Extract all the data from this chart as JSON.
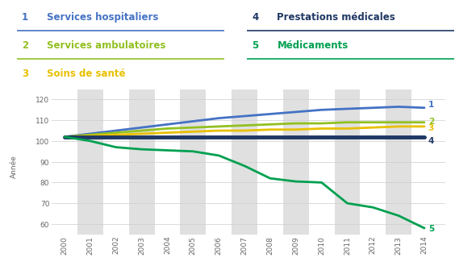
{
  "years": [
    2000,
    2001,
    2002,
    2003,
    2004,
    2005,
    2006,
    2007,
    2008,
    2009,
    2010,
    2011,
    2012,
    2013,
    2014
  ],
  "series": {
    "1": [
      102,
      103.5,
      105,
      106.5,
      108,
      109.5,
      111,
      112,
      113,
      114,
      115,
      115.5,
      116,
      116.5,
      116
    ],
    "2": [
      102,
      103,
      104,
      105,
      106,
      106.5,
      107,
      107.5,
      108,
      108.5,
      108.5,
      109,
      109,
      109,
      109
    ],
    "3": [
      102,
      102.5,
      103,
      103.5,
      104,
      104.5,
      105,
      105,
      105.5,
      105.5,
      106,
      106,
      106.5,
      107,
      107
    ],
    "4": [
      102,
      102,
      102,
      102,
      102,
      102,
      102,
      102,
      102,
      102,
      102,
      102,
      102,
      102,
      102
    ],
    "5": [
      102,
      100,
      97,
      96,
      95.5,
      95,
      93,
      88,
      82,
      80.5,
      80,
      70,
      68,
      64,
      58
    ]
  },
  "colors": {
    "1": "#4472C4",
    "2": "#92C020",
    "3": "#E8C000",
    "4": "#1F3864",
    "5": "#00A050"
  },
  "labels": {
    "1": "Services hospitaliers",
    "2": "Services ambulatoires",
    "3": "Soins de santé",
    "4": "Prestations médicales",
    "5": "Médicaments"
  },
  "label_colors": {
    "1": "#4472C4",
    "2": "#92C020",
    "3": "#E8C000",
    "4": "#1F3864",
    "5": "#00A050"
  },
  "underline_colors": {
    "1": "#4472C4",
    "2": "#92C020",
    "3": "#E8C000",
    "4": "#1F3864",
    "5": "#00A050"
  },
  "ylim": [
    55,
    125
  ],
  "yticks": [
    60,
    70,
    80,
    90,
    100,
    110,
    120
  ],
  "stripe_color": "#e0e0e0",
  "background_color": "#ffffff",
  "linewidths": {
    "1": 2.0,
    "2": 2.0,
    "3": 2.0,
    "4": 3.5,
    "5": 2.0
  },
  "label_dy": {
    "1": 1.5,
    "2": 0.5,
    "3": -0.8,
    "4": -1.8,
    "5": 0.0
  }
}
